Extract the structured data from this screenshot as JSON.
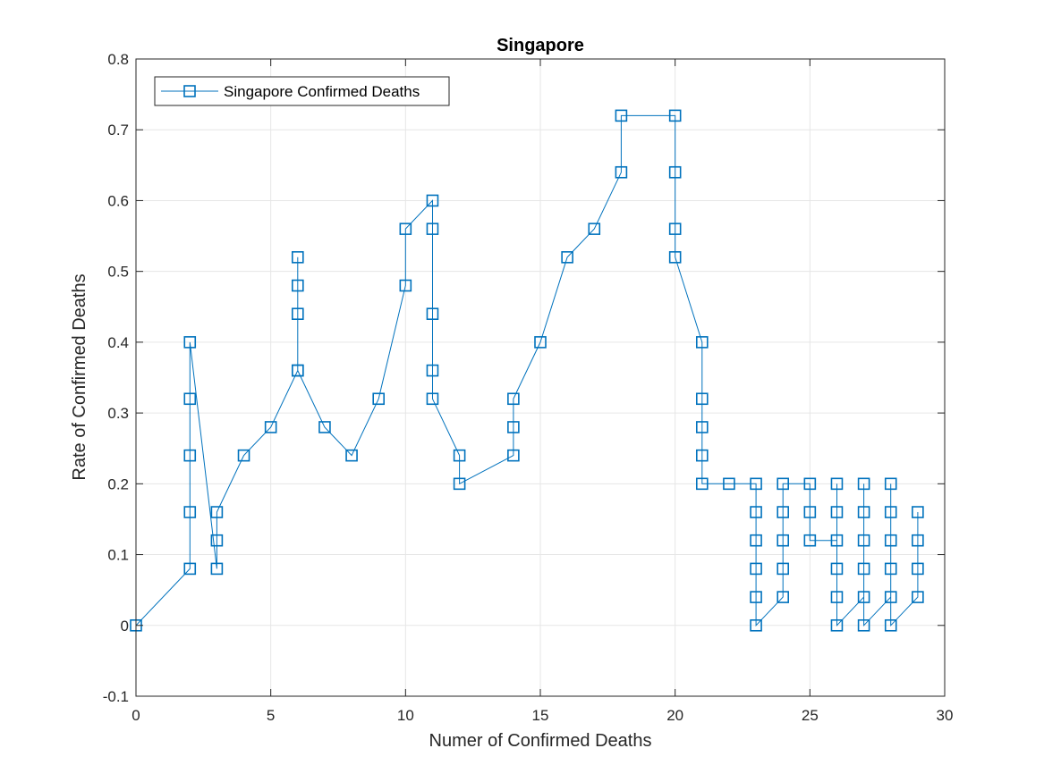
{
  "chart_data": {
    "type": "line",
    "title": "Singapore",
    "xlabel": "Numer of Confirmed Deaths",
    "ylabel": "Rate of Confirmed Deaths",
    "xlim": [
      0,
      30
    ],
    "ylim": [
      -0.1,
      0.8
    ],
    "xticks": [
      0,
      5,
      10,
      15,
      20,
      25,
      30
    ],
    "yticks": [
      -0.1,
      0,
      0.1,
      0.2,
      0.3,
      0.4,
      0.5,
      0.6,
      0.7,
      0.8
    ],
    "xtick_labels": [
      "0",
      "5",
      "10",
      "15",
      "20",
      "25",
      "30"
    ],
    "ytick_labels": [
      "-0.1",
      "0",
      "0.1",
      "0.2",
      "0.3",
      "0.4",
      "0.5",
      "0.6",
      "0.7",
      "0.8"
    ],
    "grid": true,
    "legend_position": "top-left",
    "marker": "square",
    "series": [
      {
        "name": "Singapore Confirmed Deaths",
        "color": "#0072BD",
        "x": [
          0,
          2,
          2,
          2,
          2,
          2,
          3,
          3,
          3,
          4,
          5,
          6,
          6,
          6,
          6,
          6,
          7,
          8,
          9,
          10,
          10,
          11,
          11,
          11,
          11,
          11,
          12,
          12,
          14,
          14,
          14,
          15,
          16,
          17,
          18,
          18,
          20,
          20,
          20,
          20,
          21,
          21,
          21,
          21,
          21,
          22,
          23,
          23,
          23,
          23,
          23,
          23,
          24,
          24,
          24,
          24,
          24,
          25,
          25,
          25,
          26,
          26,
          26,
          26,
          26,
          26,
          27,
          27,
          27,
          27,
          27,
          27,
          28,
          28,
          28,
          28,
          28,
          28,
          29,
          29,
          29,
          29
        ],
        "y": [
          0,
          0.08,
          0.16,
          0.24,
          0.32,
          0.4,
          0.08,
          0.12,
          0.16,
          0.24,
          0.28,
          0.36,
          0.44,
          0.48,
          0.52,
          0.36,
          0.28,
          0.24,
          0.32,
          0.48,
          0.56,
          0.6,
          0.56,
          0.44,
          0.36,
          0.32,
          0.24,
          0.2,
          0.24,
          0.28,
          0.32,
          0.4,
          0.52,
          0.56,
          0.64,
          0.72,
          0.72,
          0.64,
          0.56,
          0.52,
          0.4,
          0.32,
          0.28,
          0.24,
          0.2,
          0.2,
          0.2,
          0.16,
          0.12,
          0.08,
          0.04,
          0.0,
          0.04,
          0.08,
          0.12,
          0.16,
          0.2,
          0.2,
          0.16,
          0.12,
          0.12,
          0.16,
          0.2,
          0.08,
          0.04,
          0.0,
          0.04,
          0.08,
          0.12,
          0.16,
          0.2,
          0.0,
          0.04,
          0.08,
          0.12,
          0.16,
          0.2,
          0.0,
          0.04,
          0.08,
          0.12,
          0.16
        ]
      }
    ]
  },
  "colors": {
    "series": "#0072BD",
    "grid": "#e6e6e6",
    "axis": "#262626"
  }
}
